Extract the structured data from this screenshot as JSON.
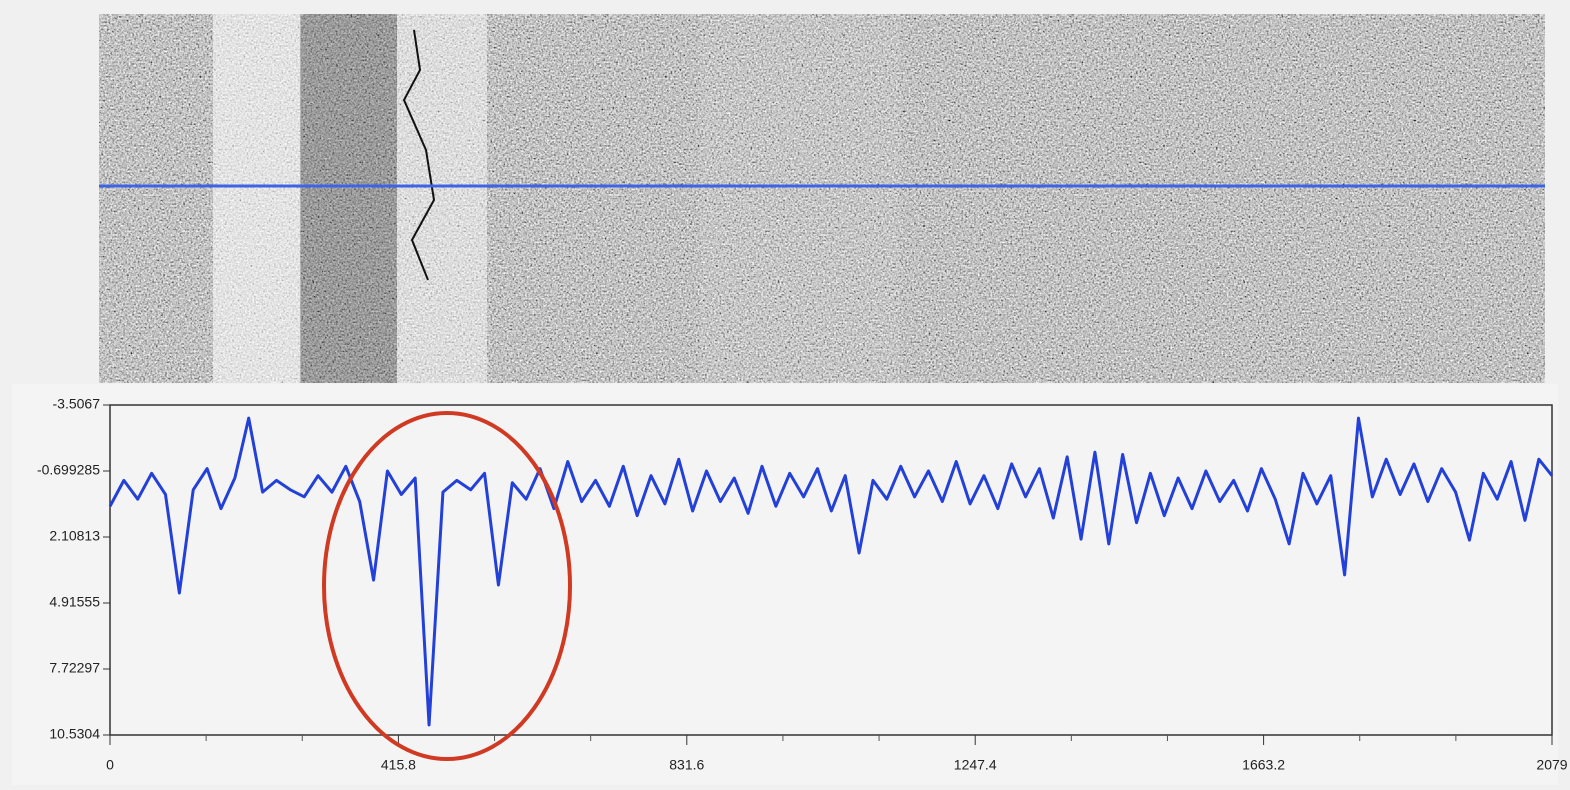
{
  "chart_data": {
    "type": "line",
    "color": "#2340d8",
    "y_inverted": true,
    "xlim": [
      0,
      2079
    ],
    "xticks": [
      0,
      415.8,
      831.6,
      1247.4,
      1663.2,
      2079
    ],
    "xminorticks": [
      138.6,
      277.2,
      554.4,
      693,
      970.2,
      1108.8,
      1386,
      1524.6,
      1801.8,
      1940.4
    ],
    "ylim": [
      -3.5067,
      10.5304
    ],
    "yticks": [
      -3.5067,
      -0.699285,
      2.10813,
      4.91555,
      7.72297,
      10.5304
    ],
    "x": [
      0,
      20,
      40,
      60,
      80,
      100,
      120,
      140,
      160,
      180,
      200,
      220,
      240,
      260,
      280,
      300,
      320,
      340,
      360,
      380,
      400,
      420,
      440,
      460,
      480,
      500,
      520,
      540,
      560,
      580,
      600,
      620,
      640,
      660,
      680,
      700,
      720,
      740,
      760,
      780,
      800,
      820,
      840,
      860,
      880,
      900,
      920,
      940,
      960,
      980,
      1000,
      1020,
      1040,
      1060,
      1080,
      1100,
      1120,
      1140,
      1160,
      1180,
      1200,
      1220,
      1240,
      1260,
      1280,
      1300,
      1320,
      1340,
      1360,
      1380,
      1400,
      1420,
      1440,
      1460,
      1480,
      1500,
      1520,
      1540,
      1560,
      1580,
      1600,
      1620,
      1640,
      1660,
      1680,
      1700,
      1720,
      1740,
      1760,
      1780,
      1800,
      1820,
      1840,
      1860,
      1880,
      1900,
      1920,
      1940,
      1960,
      1980,
      2000,
      2020,
      2040,
      2060,
      2079
    ],
    "values": [
      0.8,
      -0.3,
      0.5,
      -0.6,
      0.3,
      4.49,
      0.1,
      -0.8,
      0.9,
      -0.4,
      -2.95,
      0.2,
      -0.3,
      0.1,
      0.4,
      -0.5,
      0.2,
      -0.9,
      0.6,
      3.94,
      -0.7,
      0.3,
      -0.4,
      10.1,
      0.2,
      -0.3,
      0.1,
      -0.6,
      4.15,
      -0.2,
      0.5,
      -0.8,
      0.9,
      -1.1,
      0.6,
      -0.3,
      0.8,
      -0.9,
      1.2,
      -0.5,
      0.7,
      -1.2,
      1.0,
      -0.7,
      0.6,
      -0.4,
      1.1,
      -0.9,
      0.8,
      -0.6,
      0.4,
      -0.8,
      1.0,
      -0.5,
      2.79,
      -0.3,
      0.5,
      -0.9,
      0.4,
      -0.7,
      0.6,
      -1.1,
      0.7,
      -0.5,
      0.9,
      -1.0,
      0.4,
      -0.8,
      1.3,
      -1.3,
      2.2,
      -1.5,
      2.4,
      -1.4,
      1.5,
      -0.6,
      1.2,
      -0.4,
      0.9,
      -0.7,
      0.6,
      -0.3,
      1.0,
      -0.8,
      0.5,
      2.4,
      -0.6,
      0.7,
      -0.5,
      3.72,
      -2.95,
      0.4,
      -1.2,
      0.3,
      -1.0,
      0.6,
      -0.8,
      0.2,
      2.24,
      -0.6,
      0.5,
      -1.1,
      1.4,
      -1.2,
      -0.5
    ]
  }
}
